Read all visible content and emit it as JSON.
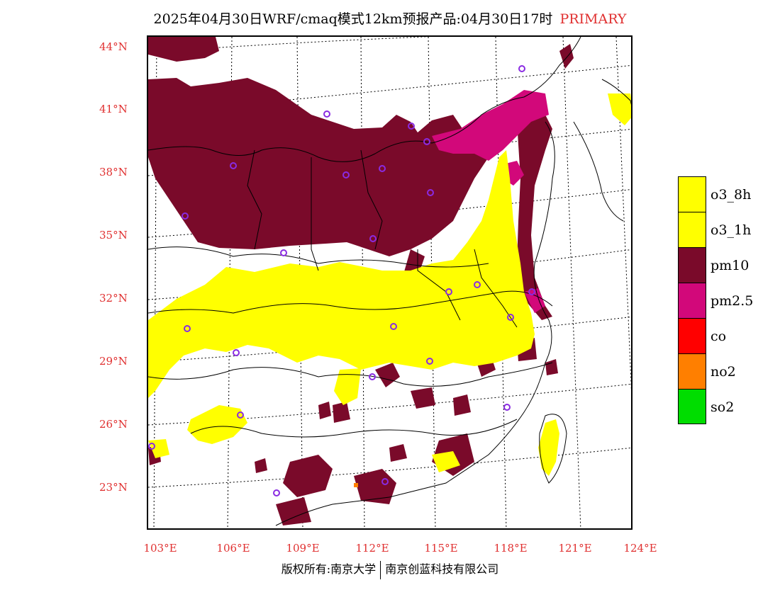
{
  "title": {
    "main": "2025年04月30日WRF/cmaq模式12km预报产品:04月30日17时",
    "tag": "PRIMARY"
  },
  "axes": {
    "lat_labels": [
      "44°N",
      "41°N",
      "38°N",
      "35°N",
      "32°N",
      "29°N",
      "26°N",
      "23°N"
    ],
    "lon_labels": [
      "103°E",
      "106°E",
      "109°E",
      "112°E",
      "115°E",
      "118°E",
      "121°E",
      "124°E"
    ]
  },
  "legend": {
    "items": [
      {
        "label": "o3_8h",
        "color": "#ffff00"
      },
      {
        "label": "o3_1h",
        "color": "#ffff00"
      },
      {
        "label": "pm10",
        "color": "#7a0a2a"
      },
      {
        "label": "pm2.5",
        "color": "#d2087a"
      },
      {
        "label": "co",
        "color": "#ff0000"
      },
      {
        "label": "no2",
        "color": "#ff7f00"
      },
      {
        "label": "so2",
        "color": "#00dd00"
      }
    ]
  },
  "footer": {
    "left": "版权所有:南京大学",
    "right": "南京创蓝科技有限公司"
  },
  "map": {
    "variable": "PRIMARY",
    "colors": {
      "o3": "#ffff00",
      "pm10": "#7a0a2a",
      "pm25": "#d2087a",
      "no2": "#ff7f00",
      "station": "#8a2be2"
    }
  }
}
